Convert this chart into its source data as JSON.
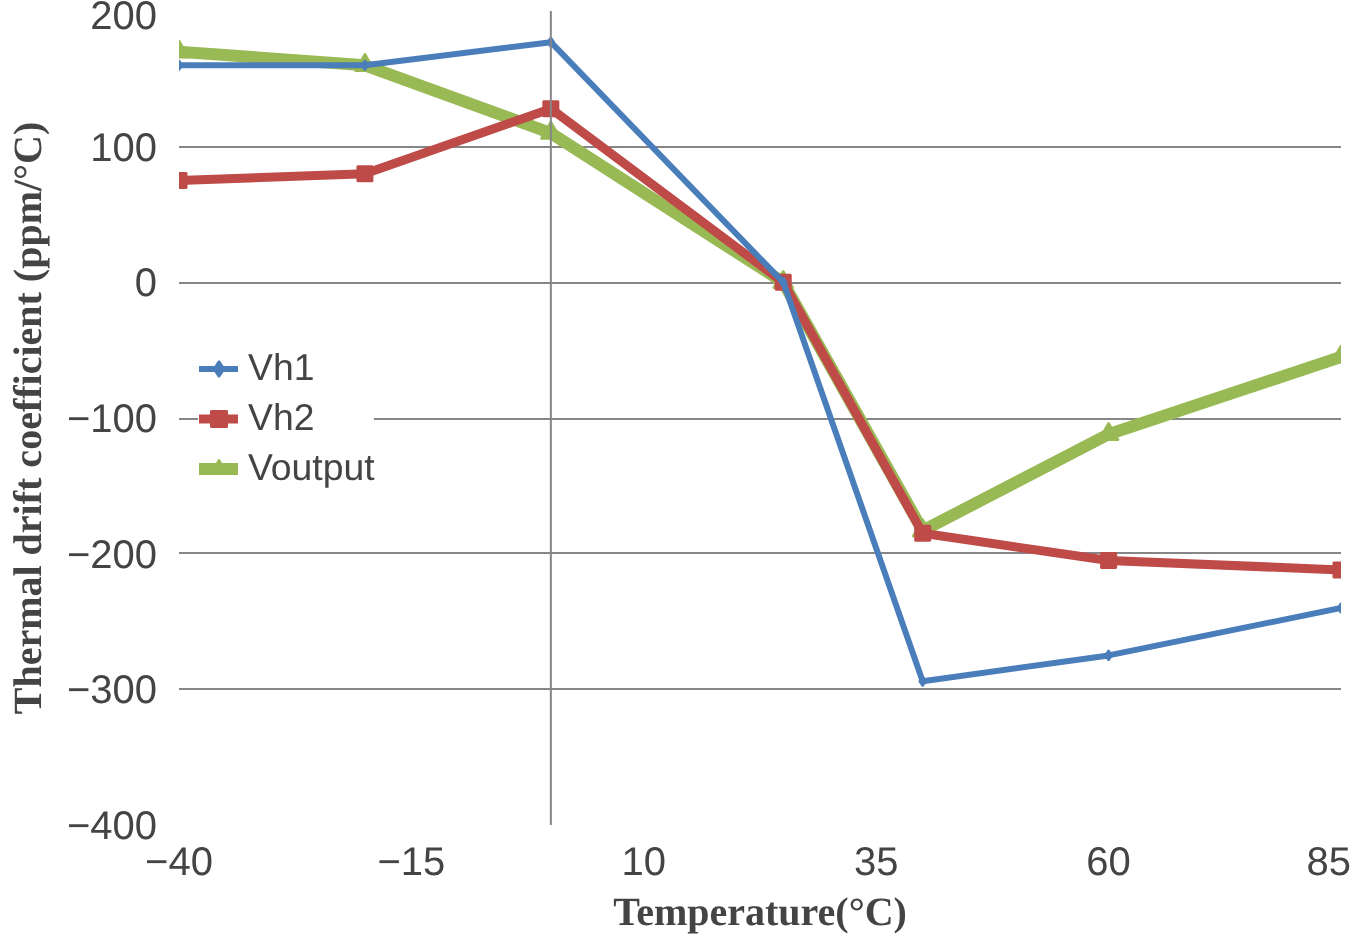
{
  "chart_data": {
    "type": "line",
    "xlabel": "Temperature(°C)",
    "ylabel": "Thermal drift coefficient (ppm/°C)",
    "x": [
      -40,
      -20,
      0,
      25,
      40,
      60,
      85
    ],
    "series": [
      {
        "name": "Vh1",
        "color": "#4a7ebb",
        "marker": "diamond",
        "values": [
          160,
          160,
          177,
          0,
          -294,
          -275,
          -240
        ]
      },
      {
        "name": "Vh2",
        "color": "#be4b48",
        "marker": "square",
        "values": [
          75,
          80,
          128,
          0,
          -185,
          -205,
          -212
        ]
      },
      {
        "name": "Voutput",
        "color": "#98b954",
        "marker": "triangle",
        "values": [
          170,
          160,
          110,
          0,
          -183,
          -112,
          -55
        ]
      }
    ],
    "xlim": [
      -40,
      85
    ],
    "xticks": [
      -40,
      -15,
      10,
      35,
      60,
      85
    ],
    "ylim": [
      -400,
      200
    ],
    "yticks": [
      -400,
      -300,
      -200,
      -100,
      0,
      100,
      200
    ],
    "ref_lines": [
      {
        "axis": "x",
        "value": 0,
        "color": "#868686"
      }
    ],
    "grid": "y",
    "legend": "center left",
    "line_style": "solid"
  }
}
